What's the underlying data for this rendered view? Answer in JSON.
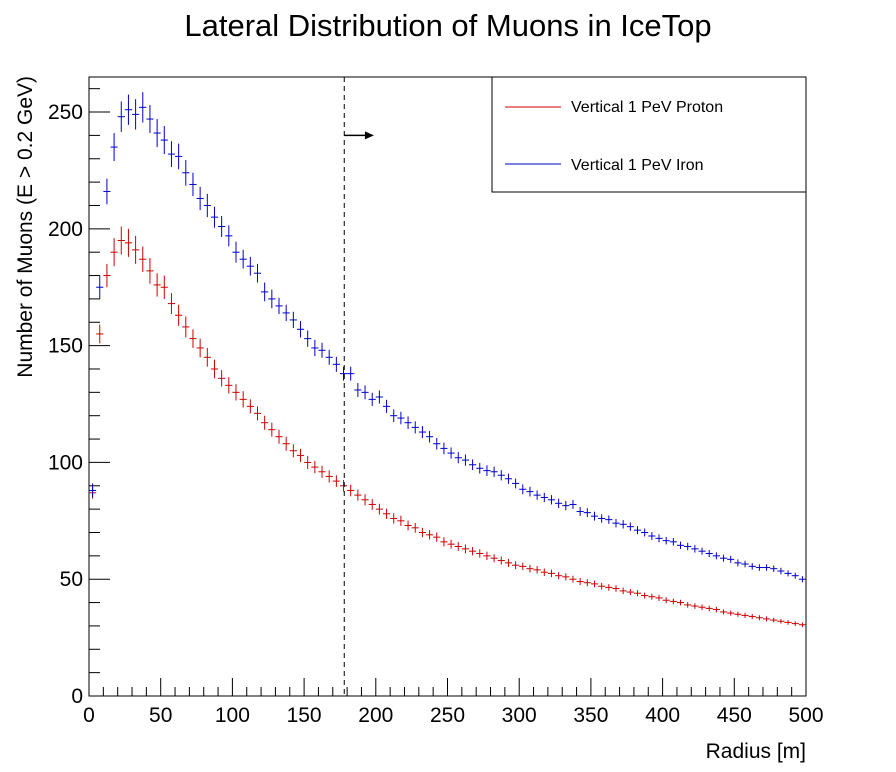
{
  "chart_data": {
    "type": "scatter",
    "title": "Lateral Distribution of Muons in IceTop",
    "xlabel": "Radius [m]",
    "ylabel": "Number of Muons (E > 0.2 GeV)",
    "xlim": [
      0,
      500
    ],
    "ylim": [
      0,
      265
    ],
    "x_ticks": [
      0,
      50,
      100,
      150,
      200,
      250,
      300,
      350,
      400,
      450,
      500
    ],
    "y_ticks": [
      0,
      50,
      100,
      150,
      200,
      250
    ],
    "grid": false,
    "legend_position": "top-right",
    "bin_width": 5,
    "x": [
      2.5,
      7.5,
      12.5,
      17.5,
      22.5,
      27.5,
      32.5,
      37.5,
      42.5,
      47.5,
      52.5,
      57.5,
      62.5,
      67.5,
      72.5,
      77.5,
      82.5,
      87.5,
      92.5,
      97.5,
      102.5,
      107.5,
      112.5,
      117.5,
      122.5,
      127.5,
      132.5,
      137.5,
      142.5,
      147.5,
      152.5,
      157.5,
      162.5,
      167.5,
      172.5,
      177.5,
      182.5,
      187.5,
      192.5,
      197.5,
      202.5,
      207.5,
      212.5,
      217.5,
      222.5,
      227.5,
      232.5,
      237.5,
      242.5,
      247.5,
      252.5,
      257.5,
      262.5,
      267.5,
      272.5,
      277.5,
      282.5,
      287.5,
      292.5,
      297.5,
      302.5,
      307.5,
      312.5,
      317.5,
      322.5,
      327.5,
      332.5,
      337.5,
      342.5,
      347.5,
      352.5,
      357.5,
      362.5,
      367.5,
      372.5,
      377.5,
      382.5,
      387.5,
      392.5,
      397.5,
      402.5,
      407.5,
      412.5,
      417.5,
      422.5,
      427.5,
      432.5,
      437.5,
      442.5,
      447.5,
      452.5,
      457.5,
      462.5,
      467.5,
      472.5,
      477.5,
      482.5,
      487.5,
      492.5,
      497.5
    ],
    "series": [
      {
        "name": "Vertical 1 PeV Proton",
        "color": "#cc0000",
        "values": [
          87,
          155,
          180,
          190,
          195,
          194,
          191,
          187,
          182,
          176,
          175,
          168,
          163,
          158,
          153,
          149,
          145,
          140,
          136,
          133,
          130,
          127,
          124,
          121,
          117,
          114,
          111,
          108,
          105,
          103,
          100,
          98,
          96,
          94,
          92,
          90,
          88,
          86,
          84,
          82,
          80,
          78,
          76,
          75,
          73,
          72,
          70,
          69,
          68,
          66,
          65,
          64,
          63,
          62,
          61,
          60,
          59,
          58,
          57,
          56,
          55.5,
          54.5,
          54,
          53,
          52.5,
          51.5,
          51,
          50,
          49,
          48.5,
          48,
          47,
          46.5,
          46,
          45,
          44.5,
          44,
          43,
          42.5,
          42,
          41,
          40.5,
          40,
          39,
          38.5,
          38,
          37.5,
          37,
          36,
          35.5,
          35,
          34.5,
          34,
          33.5,
          33,
          32.5,
          32,
          31.5,
          31,
          30.5
        ],
        "errors": [
          2.5,
          4,
          5,
          6,
          6,
          6,
          6,
          5.5,
          5.5,
          5,
          5,
          4.5,
          4.5,
          4.5,
          4,
          4,
          4,
          4,
          3.5,
          3.5,
          3.5,
          3.5,
          3,
          3,
          3,
          3,
          3,
          3,
          2.8,
          2.8,
          2.8,
          2.6,
          2.6,
          2.6,
          2.5,
          2.5,
          2.5,
          2.4,
          2.4,
          2.3,
          2.3,
          2.2,
          2.2,
          2.2,
          2.1,
          2.1,
          2,
          2,
          2,
          2,
          1.9,
          1.9,
          1.9,
          1.8,
          1.8,
          1.8,
          1.7,
          1.7,
          1.7,
          1.7,
          1.6,
          1.6,
          1.6,
          1.6,
          1.6,
          1.5,
          1.5,
          1.5,
          1.5,
          1.5,
          1.4,
          1.4,
          1.4,
          1.4,
          1.4,
          1.3,
          1.3,
          1.3,
          1.3,
          1.3,
          1.3,
          1.2,
          1.2,
          1.2,
          1.2,
          1.2,
          1.2,
          1.2,
          1.1,
          1.1,
          1.1,
          1.1,
          1.1,
          1.1,
          1.1,
          1,
          1,
          1,
          1,
          1
        ]
      },
      {
        "name": "Vertical 1 PeV Iron",
        "color": "#0000cc",
        "values": [
          88,
          175,
          216,
          235,
          248,
          251,
          249,
          252,
          247,
          241,
          238,
          232,
          231,
          224,
          219,
          213,
          210,
          205,
          201,
          197,
          190,
          187,
          184,
          181,
          173,
          170,
          167,
          164,
          161,
          157,
          153,
          149,
          148,
          145,
          142,
          138,
          138,
          131,
          130,
          127,
          128,
          124,
          120,
          119,
          117,
          115,
          113,
          111,
          108,
          106,
          104,
          102,
          101,
          99,
          97.5,
          96.5,
          96,
          94.5,
          93,
          91,
          88.5,
          87.5,
          86,
          85,
          84,
          82.5,
          81.5,
          82,
          79,
          78.5,
          77,
          76,
          75.5,
          74,
          73.5,
          72.5,
          71,
          70,
          68.5,
          67.5,
          66.5,
          66,
          64.5,
          64,
          63,
          62,
          61,
          60,
          59,
          58.5,
          57,
          56.5,
          55.5,
          55,
          55,
          54.5,
          53.5,
          52.5,
          51.5,
          50
        ]
      }
    ],
    "iron_errors": [
      3,
      5,
      5.5,
      6,
      6.5,
      6.5,
      6.5,
      6.5,
      6,
      6,
      6,
      5.5,
      5.5,
      5.5,
      5,
      5,
      5,
      4.5,
      4.5,
      4.5,
      4.5,
      4,
      4,
      4,
      4,
      4,
      3.5,
      3.5,
      3.5,
      3.5,
      3.5,
      3.5,
      3.2,
      3.2,
      3.2,
      3,
      3,
      3,
      3,
      2.8,
      2.8,
      2.8,
      2.7,
      2.7,
      2.7,
      2.6,
      2.6,
      2.5,
      2.5,
      2.5,
      2.4,
      2.4,
      2.4,
      2.3,
      2.3,
      2.3,
      2.2,
      2.2,
      2.2,
      2.1,
      2.1,
      2.1,
      2,
      2,
      2,
      2,
      2,
      1.9,
      1.9,
      1.9,
      1.9,
      1.8,
      1.8,
      1.8,
      1.8,
      1.8,
      1.7,
      1.7,
      1.7,
      1.7,
      1.6,
      1.6,
      1.6,
      1.6,
      1.6,
      1.5,
      1.5,
      1.5,
      1.5,
      1.5,
      1.5,
      1.4,
      1.4,
      1.4,
      1.4,
      1.4,
      1.4,
      1.3,
      1.3,
      1.3
    ],
    "annotations": [
      {
        "type": "vertical-dashed-line",
        "x": 178
      },
      {
        "type": "arrow",
        "x_start": 178,
        "x_end": 198,
        "y": 240
      }
    ],
    "colors": {
      "axis": "#000000",
      "proton": "#cc0000",
      "iron": "#0000cc"
    }
  }
}
